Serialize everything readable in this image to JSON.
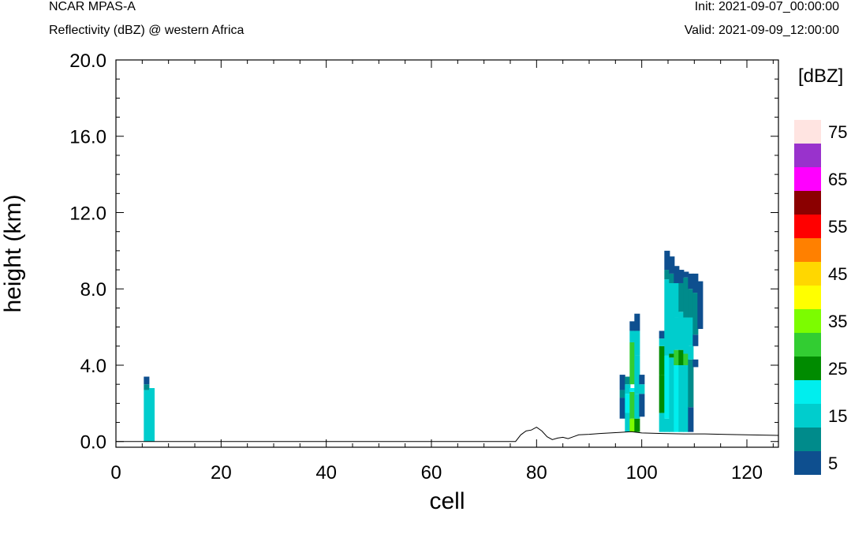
{
  "header": {
    "model": "NCAR MPAS-A",
    "field": "Reflectivity (dBZ) @ western Africa",
    "init": "Init: 2021-09-07_00:00:00",
    "valid": "Valid: 2021-09-09_12:00:00"
  },
  "chart_data": {
    "type": "heatmap",
    "xlabel": "cell",
    "ylabel": "height (km)",
    "xlim": [
      0,
      126
    ],
    "ylim": [
      -0.3,
      20.0
    ],
    "x_ticks": [
      0,
      20,
      40,
      60,
      80,
      100,
      120
    ],
    "y_ticks": [
      0.0,
      4.0,
      8.0,
      12.0,
      16.0,
      20.0
    ],
    "y_tick_labels": [
      "0.0",
      "4.0",
      "8.0",
      "12.0",
      "16.0",
      "20.0"
    ],
    "grid": false,
    "colorbar": {
      "units": "[dBZ]",
      "levels": [
        5,
        10,
        15,
        20,
        25,
        30,
        35,
        40,
        45,
        50,
        55,
        60,
        65,
        70,
        75
      ],
      "labels": [
        "5",
        "15",
        "25",
        "35",
        "45",
        "55",
        "65",
        "75"
      ],
      "colors": [
        "#0e4f8f",
        "#008b8b",
        "#00cdcd",
        "#00eeee",
        "#008b00",
        "#32cd32",
        "#7cfc00",
        "#ffff00",
        "#ffd700",
        "#ff8000",
        "#ff0000",
        "#8b0000",
        "#ff00ff",
        "#9932cc",
        "#ffe4e1"
      ]
    },
    "terrain_km": [
      [
        0,
        0
      ],
      [
        76,
        0
      ],
      [
        77,
        0.35
      ],
      [
        78,
        0.55
      ],
      [
        79,
        0.6
      ],
      [
        80,
        0.75
      ],
      [
        81,
        0.55
      ],
      [
        82,
        0.25
      ],
      [
        83,
        0.1
      ],
      [
        84,
        0.18
      ],
      [
        85,
        0.22
      ],
      [
        86,
        0.15
      ],
      [
        87,
        0.25
      ],
      [
        88,
        0.35
      ],
      [
        90,
        0.38
      ],
      [
        92,
        0.42
      ],
      [
        94,
        0.45
      ],
      [
        96,
        0.48
      ],
      [
        98,
        0.52
      ],
      [
        100,
        0.45
      ],
      [
        104,
        0.42
      ],
      [
        108,
        0.4
      ],
      [
        112,
        0.4
      ],
      [
        116,
        0.37
      ],
      [
        120,
        0.35
      ],
      [
        126,
        0.32
      ]
    ],
    "reflectivity_columns": [
      {
        "cell": 5.8,
        "layers": [
          [
            0,
            2.7,
            15
          ],
          [
            2.7,
            3.0,
            10
          ],
          [
            3.0,
            3.4,
            5
          ]
        ]
      },
      {
        "cell": 6.8,
        "layers": [
          [
            0,
            2.8,
            15
          ]
        ]
      },
      {
        "cell": 96.3,
        "layers": [
          [
            1.2,
            2.3,
            5
          ],
          [
            2.3,
            2.7,
            10
          ],
          [
            2.7,
            3.5,
            5
          ]
        ]
      },
      {
        "cell": 97.3,
        "layers": [
          [
            0.5,
            1.5,
            15
          ],
          [
            1.5,
            2.5,
            20
          ],
          [
            2.5,
            3.0,
            15
          ],
          [
            3.0,
            3.4,
            10
          ]
        ]
      },
      {
        "cell": 98.2,
        "layers": [
          [
            0.5,
            1.2,
            35
          ],
          [
            1.2,
            2.6,
            30
          ],
          [
            2.6,
            2.8,
            20
          ],
          [
            3.0,
            4.0,
            30
          ],
          [
            4.0,
            5.2,
            30
          ],
          [
            5.2,
            5.8,
            15
          ],
          [
            5.8,
            6.3,
            5
          ]
        ]
      },
      {
        "cell": 99.1,
        "layers": [
          [
            0.5,
            1.2,
            25
          ],
          [
            1.2,
            2.5,
            15
          ],
          [
            2.5,
            4.5,
            15
          ],
          [
            4.5,
            5.8,
            15
          ],
          [
            5.8,
            6.7,
            5
          ]
        ]
      },
      {
        "cell": 100.0,
        "layers": [
          [
            1.3,
            2.5,
            5
          ],
          [
            2.5,
            3.0,
            15
          ],
          [
            3.0,
            3.5,
            5
          ]
        ]
      },
      {
        "cell": 103.8,
        "layers": [
          [
            0.5,
            1.5,
            15
          ],
          [
            1.5,
            3.5,
            25
          ],
          [
            3.5,
            5.0,
            25
          ],
          [
            5.0,
            5.4,
            15
          ],
          [
            5.4,
            5.8,
            5
          ]
        ]
      },
      {
        "cell": 104.8,
        "layers": [
          [
            0.5,
            1.2,
            15
          ],
          [
            1.2,
            4.5,
            20
          ],
          [
            4.5,
            8.5,
            15
          ],
          [
            8.5,
            9.0,
            10
          ],
          [
            9.0,
            10.0,
            5
          ]
        ]
      },
      {
        "cell": 105.7,
        "layers": [
          [
            0.5,
            4.4,
            15
          ],
          [
            4.4,
            4.6,
            25
          ],
          [
            4.6,
            8.3,
            15
          ],
          [
            8.3,
            8.8,
            10
          ],
          [
            8.8,
            9.7,
            5
          ]
        ]
      },
      {
        "cell": 106.6,
        "layers": [
          [
            0.5,
            4.0,
            20
          ],
          [
            4.0,
            4.8,
            30
          ],
          [
            4.8,
            6.5,
            15
          ],
          [
            6.5,
            8.3,
            15
          ],
          [
            8.3,
            9.2,
            5
          ]
        ]
      },
      {
        "cell": 107.5,
        "layers": [
          [
            0.5,
            4.0,
            15
          ],
          [
            4.0,
            4.8,
            25
          ],
          [
            4.8,
            6.8,
            15
          ],
          [
            6.8,
            8.3,
            10
          ],
          [
            8.3,
            9.0,
            5
          ]
        ]
      },
      {
        "cell": 108.4,
        "layers": [
          [
            0.5,
            4.0,
            15
          ],
          [
            4.0,
            4.6,
            30
          ],
          [
            4.6,
            6.5,
            15
          ],
          [
            6.5,
            8.6,
            10
          ],
          [
            8.6,
            8.9,
            5
          ]
        ]
      },
      {
        "cell": 109.3,
        "layers": [
          [
            0.5,
            1.8,
            5
          ],
          [
            1.8,
            4.3,
            10
          ],
          [
            4.3,
            5.0,
            15
          ],
          [
            5.0,
            6.5,
            15
          ],
          [
            6.5,
            8.0,
            10
          ],
          [
            8.0,
            8.8,
            5
          ]
        ]
      },
      {
        "cell": 110.2,
        "layers": [
          [
            3.9,
            4.3,
            5
          ],
          [
            5.0,
            5.6,
            5
          ],
          [
            5.6,
            7.8,
            10
          ],
          [
            7.8,
            8.8,
            5
          ]
        ]
      },
      {
        "cell": 111.1,
        "layers": [
          [
            5.9,
            8.4,
            5
          ]
        ]
      }
    ]
  }
}
